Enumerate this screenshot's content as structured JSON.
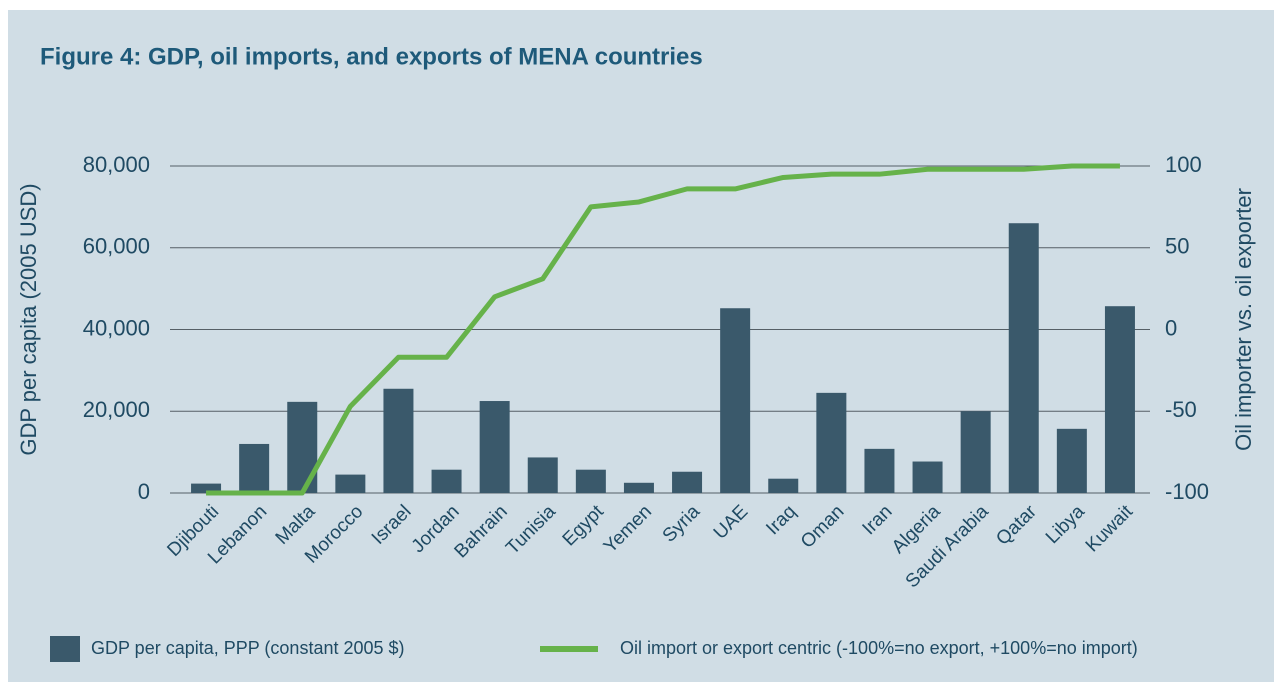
{
  "chart_data": {
    "type": "bar+line",
    "title": "Figure 4: GDP, oil imports, and exports of MENA countries",
    "ylabel": "GDP per capita (2005 USD)",
    "y2label": "Oil importer vs. oil exporter",
    "categories": [
      "Djibouti",
      "Lebanon",
      "Malta",
      "Morocco",
      "Israel",
      "Jordan",
      "Bahrain",
      "Tunisia",
      "Egypt",
      "Yemen",
      "Syria",
      "UAE",
      "Iraq",
      "Oman",
      "Iran",
      "Algeria",
      "Saudi Arabia",
      "Qatar",
      "Libya",
      "Kuwait"
    ],
    "series": [
      {
        "name": "GDP per capita, PPP (constant 2005 $)",
        "type": "bar",
        "color": "#3a596b",
        "values": [
          2300,
          12000,
          22300,
          4500,
          25500,
          5700,
          22500,
          8700,
          5700,
          2500,
          5200,
          45200,
          3500,
          24500,
          10800,
          7700,
          20000,
          66000,
          15700,
          45700
        ]
      },
      {
        "name": "Oil import or export centric (-100%=no export, +100%=no import)",
        "type": "line",
        "axis": "y2",
        "color": "#66b24a",
        "values": [
          -100,
          -100,
          -100,
          -47,
          -17,
          -17,
          20,
          31,
          75,
          78,
          86,
          86,
          93,
          95,
          95,
          98,
          98,
          98,
          100,
          100
        ]
      }
    ],
    "ylim": [
      0,
      80000
    ],
    "yticks": [
      0,
      {
        "value": 20000,
        "label": "20,000"
      },
      {
        "value": 40000,
        "label": "40,000"
      },
      {
        "value": 60000,
        "label": "60,000"
      },
      {
        "value": 80000,
        "label": "80,000"
      }
    ],
    "y2lim": [
      -100,
      100
    ],
    "y2ticks": [
      -100,
      -50,
      0,
      50,
      100
    ],
    "grid": true,
    "legend": "bottom"
  }
}
